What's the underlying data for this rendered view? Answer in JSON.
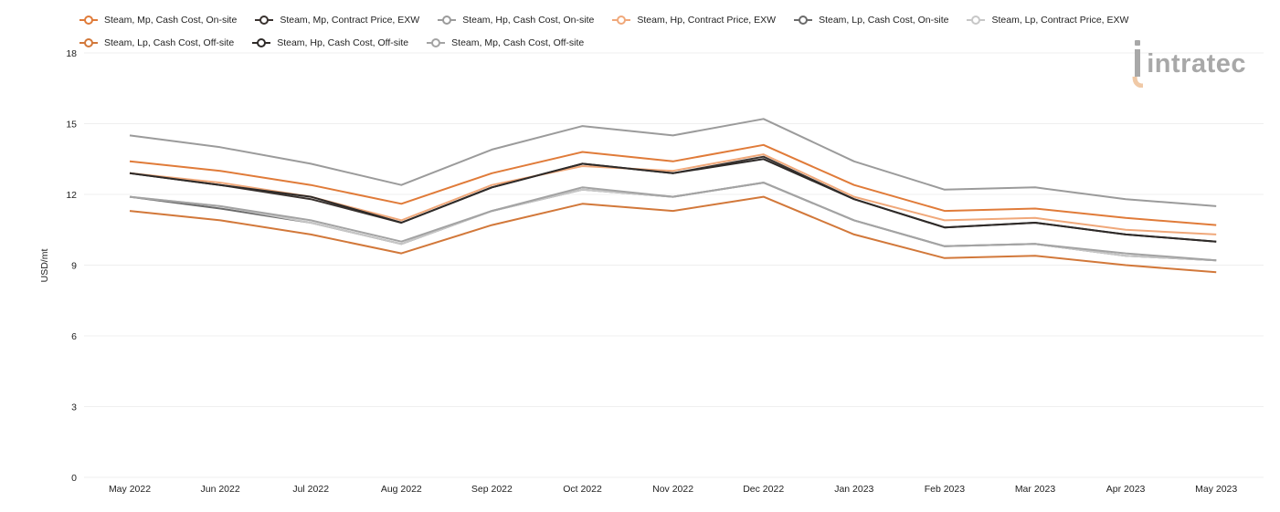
{
  "chart_data": {
    "type": "line",
    "ylabel": "USD/mt",
    "ylim": [
      0,
      18
    ],
    "yticks": [
      0,
      3,
      6,
      9,
      12,
      15,
      18
    ],
    "categories": [
      "May 2022",
      "Jun 2022",
      "Jul 2022",
      "Aug 2022",
      "Sep 2022",
      "Oct 2022",
      "Nov 2022",
      "Dec 2022",
      "Jan 2023",
      "Feb 2023",
      "Mar 2023",
      "Apr 2023",
      "May 2023"
    ],
    "legend_position": "top",
    "grid": true,
    "series": [
      {
        "name": "Steam, Mp, Cash Cost, On-site",
        "color": "#e07b39",
        "values": [
          13.4,
          13.0,
          12.4,
          11.6,
          12.9,
          13.8,
          13.4,
          14.1,
          12.4,
          11.3,
          11.4,
          11.0,
          10.7
        ]
      },
      {
        "name": "Steam, Mp, Contract Price, EXW",
        "color": "#3a3330",
        "values": [
          12.9,
          12.4,
          11.8,
          10.8,
          12.3,
          13.3,
          12.9,
          13.6,
          11.8,
          10.6,
          10.8,
          10.3,
          10.0
        ]
      },
      {
        "name": "Steam, Hp, Cash Cost, On-site",
        "color": "#9b9b9b",
        "values": [
          14.5,
          14.0,
          13.3,
          12.4,
          13.9,
          14.9,
          14.5,
          15.2,
          13.4,
          12.2,
          12.3,
          11.8,
          11.5
        ]
      },
      {
        "name": "Steam, Hp, Contract Price, EXW",
        "color": "#f0a87a",
        "values": [
          12.9,
          12.5,
          11.9,
          10.9,
          12.4,
          13.2,
          13.0,
          13.7,
          11.9,
          10.9,
          11.0,
          10.5,
          10.3
        ]
      },
      {
        "name": "Steam, Lp, Cash Cost, On-site",
        "color": "#6b6b6b",
        "values": [
          11.9,
          11.4,
          10.8,
          9.9,
          11.3,
          12.2,
          11.9,
          12.5,
          10.9,
          9.8,
          9.9,
          9.4,
          9.2
        ]
      },
      {
        "name": "Steam, Lp, Contract Price, EXW",
        "color": "#c7c7c7",
        "values": [
          11.9,
          11.5,
          10.8,
          9.9,
          11.3,
          12.2,
          11.9,
          12.5,
          10.9,
          9.8,
          9.9,
          9.4,
          9.2
        ]
      },
      {
        "name": "Steam, Lp, Cash Cost, Off-site",
        "color": "#d2783a",
        "values": [
          11.3,
          10.9,
          10.3,
          9.5,
          10.7,
          11.6,
          11.3,
          11.9,
          10.3,
          9.3,
          9.4,
          9.0,
          8.7
        ]
      },
      {
        "name": "Steam, Hp, Cash Cost, Off-site",
        "color": "#2e2a28",
        "values": [
          12.9,
          12.4,
          11.9,
          10.8,
          12.3,
          13.3,
          12.9,
          13.5,
          11.8,
          10.6,
          10.8,
          10.3,
          10.0
        ]
      },
      {
        "name": "Steam, Mp, Cash Cost, Off-site",
        "color": "#a3a3a3",
        "values": [
          11.9,
          11.5,
          10.9,
          10.0,
          11.3,
          12.3,
          11.9,
          12.5,
          10.9,
          9.8,
          9.9,
          9.5,
          9.2
        ]
      }
    ]
  },
  "branding": {
    "logo_text": "intratec",
    "logo_color": "#a8a8a8",
    "logo_accent": "#f0c9a6"
  }
}
